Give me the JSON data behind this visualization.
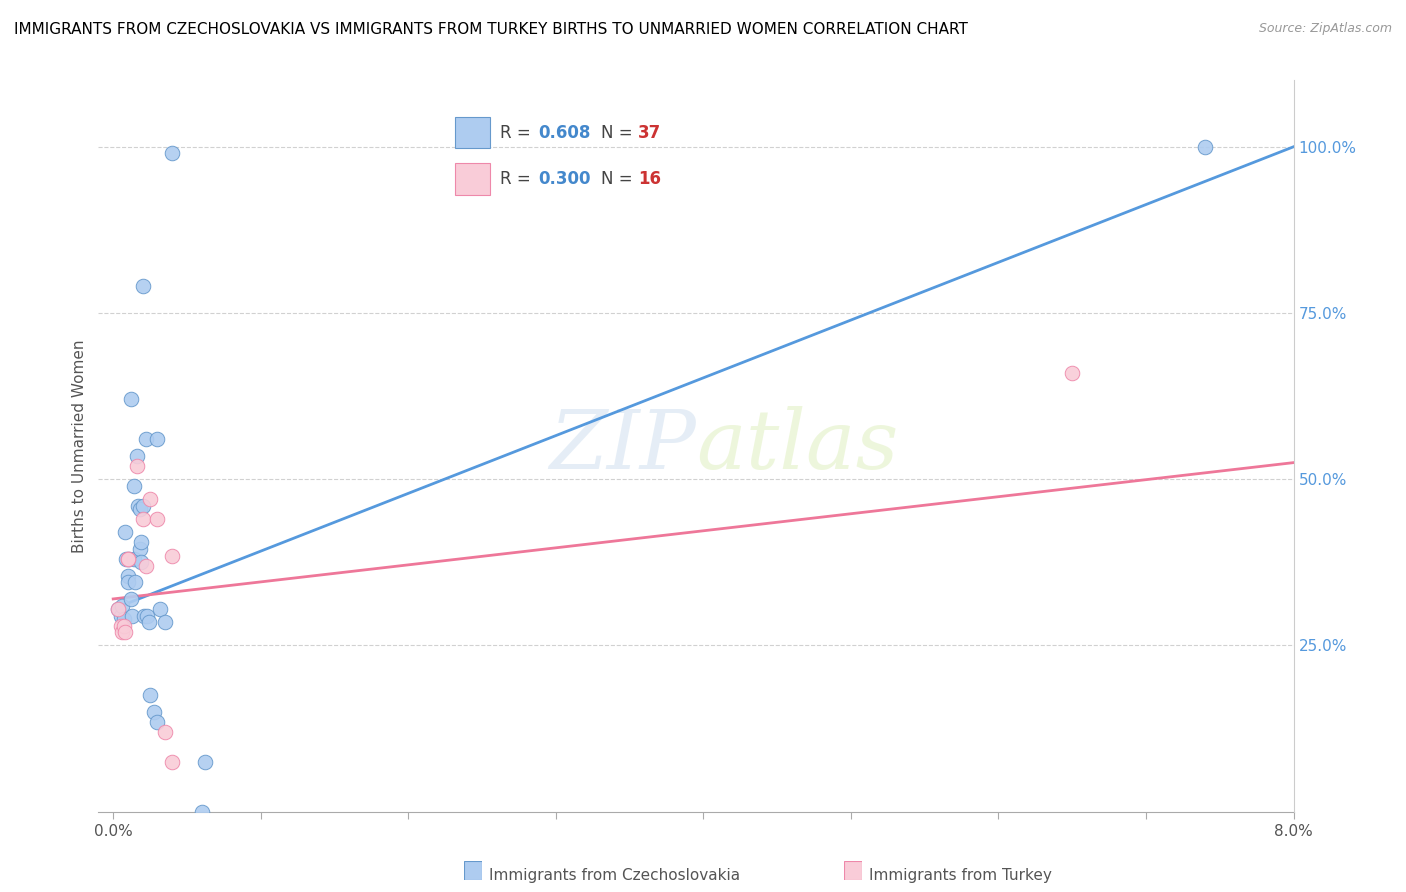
{
  "title": "IMMIGRANTS FROM CZECHOSLOVAKIA VS IMMIGRANTS FROM TURKEY BIRTHS TO UNMARRIED WOMEN CORRELATION CHART",
  "source": "Source: ZipAtlas.com",
  "ylabel": "Births to Unmarried Women",
  "ytick_labels": [
    "25.0%",
    "50.0%",
    "75.0%",
    "100.0%"
  ],
  "ytick_values": [
    0.25,
    0.5,
    0.75,
    1.0
  ],
  "legend_blue_R": "0.608",
  "legend_blue_N": "37",
  "legend_pink_R": "0.300",
  "legend_pink_N": "16",
  "blue_color": "#aeccf0",
  "pink_color": "#f9ccd8",
  "blue_edge_color": "#6699cc",
  "pink_edge_color": "#ee88aa",
  "blue_line_color": "#5599dd",
  "pink_line_color": "#ee7799",
  "blue_scatter": [
    [
      0.0003,
      0.305
    ],
    [
      0.0005,
      0.295
    ],
    [
      0.0006,
      0.31
    ],
    [
      0.0007,
      0.29
    ],
    [
      0.0008,
      0.42
    ],
    [
      0.0009,
      0.38
    ],
    [
      0.001,
      0.355
    ],
    [
      0.001,
      0.345
    ],
    [
      0.0011,
      0.38
    ],
    [
      0.0012,
      0.62
    ],
    [
      0.0012,
      0.32
    ],
    [
      0.0013,
      0.295
    ],
    [
      0.0014,
      0.49
    ],
    [
      0.0014,
      0.38
    ],
    [
      0.0015,
      0.345
    ],
    [
      0.0016,
      0.535
    ],
    [
      0.0017,
      0.46
    ],
    [
      0.0018,
      0.455
    ],
    [
      0.0018,
      0.395
    ],
    [
      0.0019,
      0.405
    ],
    [
      0.0019,
      0.375
    ],
    [
      0.002,
      0.79
    ],
    [
      0.002,
      0.46
    ],
    [
      0.0021,
      0.295
    ],
    [
      0.0022,
      0.56
    ],
    [
      0.0023,
      0.295
    ],
    [
      0.0024,
      0.285
    ],
    [
      0.0025,
      0.175
    ],
    [
      0.0028,
      0.15
    ],
    [
      0.003,
      0.135
    ],
    [
      0.003,
      0.56
    ],
    [
      0.0032,
      0.305
    ],
    [
      0.0035,
      0.285
    ],
    [
      0.004,
      0.99
    ],
    [
      0.006,
      0.0
    ],
    [
      0.0062,
      0.075
    ],
    [
      0.074,
      1.0
    ]
  ],
  "pink_scatter": [
    [
      0.0003,
      0.305
    ],
    [
      0.0005,
      0.28
    ],
    [
      0.0006,
      0.27
    ],
    [
      0.0007,
      0.28
    ],
    [
      0.0008,
      0.27
    ],
    [
      0.001,
      0.38
    ],
    [
      0.001,
      0.38
    ],
    [
      0.0016,
      0.52
    ],
    [
      0.002,
      0.44
    ],
    [
      0.0022,
      0.37
    ],
    [
      0.0025,
      0.47
    ],
    [
      0.003,
      0.44
    ],
    [
      0.0035,
      0.12
    ],
    [
      0.004,
      0.075
    ],
    [
      0.004,
      0.385
    ],
    [
      0.065,
      0.66
    ]
  ],
  "blue_line_x": [
    0.0,
    0.08
  ],
  "blue_line_y": [
    0.305,
    1.0
  ],
  "pink_line_x": [
    0.0,
    0.08
  ],
  "pink_line_y": [
    0.32,
    0.525
  ],
  "watermark_zip": "ZIP",
  "watermark_atlas": "atlas",
  "xmin": 0.0,
  "xmax": 0.08,
  "ymin": 0.0,
  "ymax": 1.1,
  "figsize": [
    14.06,
    8.92
  ],
  "dpi": 100
}
